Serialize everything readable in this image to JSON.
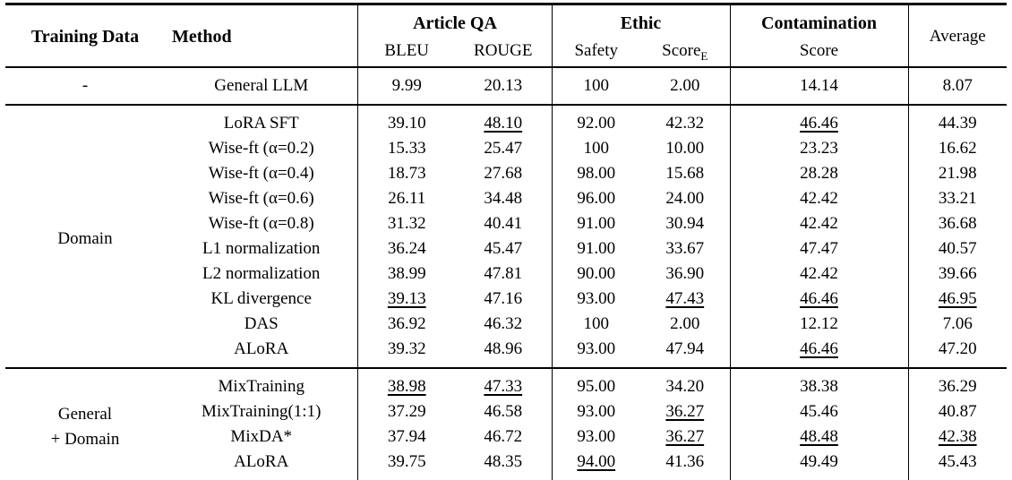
{
  "colors": {
    "background": "#ffffff",
    "text": "#000000",
    "rule": "#000000"
  },
  "table": {
    "header": {
      "training_data": "Training Data",
      "method": "Method",
      "article_qa": "Article QA",
      "ethic": "Ethic",
      "contamination": "Contamination",
      "bleu": "BLEU",
      "rouge": "ROUGE",
      "safety": "Safety",
      "score_e_base": "Score",
      "score_e_sub": "E",
      "contamination_sub": "Score",
      "average": "Average"
    },
    "columns_order": [
      "BLEU",
      "ROUGE",
      "Safety",
      "ScoreE",
      "Contamination Score",
      "Average"
    ],
    "groups": [
      {
        "training_data_lines": [
          "-"
        ],
        "rows": [
          {
            "method": "General LLM",
            "values": [
              {
                "v": "9.99"
              },
              {
                "v": "20.13"
              },
              {
                "v": "100",
                "bold": true
              },
              {
                "v": "2.00"
              },
              {
                "v": "14.14"
              },
              {
                "v": "8.07"
              }
            ]
          }
        ]
      },
      {
        "training_data_lines": [
          "Domain"
        ],
        "rows": [
          {
            "method": "LoRA SFT",
            "values": [
              {
                "v": "39.10"
              },
              {
                "v": "48.10",
                "underline": true
              },
              {
                "v": "92.00"
              },
              {
                "v": "42.32"
              },
              {
                "v": "46.46",
                "underline": true
              },
              {
                "v": "44.39"
              }
            ]
          },
          {
            "method": "Wise-ft (α=0.2)",
            "values": [
              {
                "v": "15.33"
              },
              {
                "v": "25.47"
              },
              {
                "v": "100",
                "bold": true
              },
              {
                "v": "10.00"
              },
              {
                "v": "23.23"
              },
              {
                "v": "16.62"
              }
            ]
          },
          {
            "method": "Wise-ft (α=0.4)",
            "values": [
              {
                "v": "18.73"
              },
              {
                "v": "27.68"
              },
              {
                "v": "98.00"
              },
              {
                "v": "15.68"
              },
              {
                "v": "28.28"
              },
              {
                "v": "21.98"
              }
            ]
          },
          {
            "method": "Wise-ft (α=0.6)",
            "values": [
              {
                "v": "26.11"
              },
              {
                "v": "34.48"
              },
              {
                "v": "96.00"
              },
              {
                "v": "24.00"
              },
              {
                "v": "42.42"
              },
              {
                "v": "33.21"
              }
            ]
          },
          {
            "method": "Wise-ft (α=0.8)",
            "values": [
              {
                "v": "31.32"
              },
              {
                "v": "40.41"
              },
              {
                "v": "91.00"
              },
              {
                "v": "30.94"
              },
              {
                "v": "42.42"
              },
              {
                "v": "36.68"
              }
            ]
          },
          {
            "method": "L1 normalization",
            "values": [
              {
                "v": "36.24"
              },
              {
                "v": "45.47"
              },
              {
                "v": "91.00"
              },
              {
                "v": "33.67"
              },
              {
                "v": "47.47",
                "bold": true
              },
              {
                "v": "40.57"
              }
            ]
          },
          {
            "method": "L2 normalization",
            "values": [
              {
                "v": "38.99"
              },
              {
                "v": "47.81"
              },
              {
                "v": "90.00"
              },
              {
                "v": "36.90"
              },
              {
                "v": "42.42"
              },
              {
                "v": "39.66"
              }
            ]
          },
          {
            "method": "KL divergence",
            "values": [
              {
                "v": "39.13",
                "underline": true
              },
              {
                "v": "47.16"
              },
              {
                "v": "93.00"
              },
              {
                "v": "47.43",
                "underline": true
              },
              {
                "v": "46.46",
                "underline": true
              },
              {
                "v": "46.95",
                "underline": true
              }
            ]
          },
          {
            "method": "DAS",
            "values": [
              {
                "v": "36.92"
              },
              {
                "v": "46.32"
              },
              {
                "v": "100",
                "bold": true
              },
              {
                "v": "2.00"
              },
              {
                "v": "12.12"
              },
              {
                "v": "7.06"
              }
            ]
          },
          {
            "method": "ALoRA",
            "values": [
              {
                "v": "39.32",
                "bold": true
              },
              {
                "v": "48.96",
                "bold": true
              },
              {
                "v": "93.00"
              },
              {
                "v": "47.94",
                "bold": true
              },
              {
                "v": "46.46",
                "underline": true
              },
              {
                "v": "47.20",
                "bold": true
              }
            ]
          }
        ]
      },
      {
        "training_data_lines": [
          "General",
          "+ Domain"
        ],
        "rows": [
          {
            "method": "MixTraining",
            "values": [
              {
                "v": "38.98",
                "underline": true
              },
              {
                "v": "47.33",
                "underline": true
              },
              {
                "v": "95.00",
                "bold": true
              },
              {
                "v": "34.20"
              },
              {
                "v": "38.38"
              },
              {
                "v": "36.29"
              }
            ]
          },
          {
            "method": "MixTraining(1:1)",
            "values": [
              {
                "v": "37.29"
              },
              {
                "v": "46.58"
              },
              {
                "v": "93.00"
              },
              {
                "v": "36.27",
                "underline": true
              },
              {
                "v": "45.46"
              },
              {
                "v": "40.87"
              }
            ]
          },
          {
            "method": "MixDA*",
            "values": [
              {
                "v": "37.94"
              },
              {
                "v": "46.72"
              },
              {
                "v": "93.00"
              },
              {
                "v": "36.27",
                "underline": true
              },
              {
                "v": "48.48",
                "underline": true
              },
              {
                "v": "42.38",
                "underline": true
              }
            ]
          },
          {
            "method": "ALoRA",
            "values": [
              {
                "v": "39.75",
                "bold": true
              },
              {
                "v": "48.35",
                "bold": true
              },
              {
                "v": "94.00",
                "underline": true
              },
              {
                "v": "41.36",
                "bold": true
              },
              {
                "v": "49.49",
                "bold": true
              },
              {
                "v": "45.43",
                "bold": true
              }
            ]
          }
        ]
      }
    ]
  }
}
